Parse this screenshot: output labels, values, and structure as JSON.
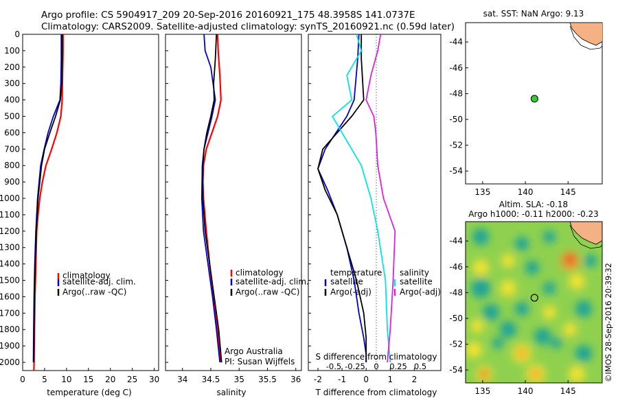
{
  "header": {
    "line1": "Argo profile: CS 5904917_209 20-Sep-2016 20160921_175 48.3958S 141.0737E",
    "line2": "Climatology: CARS2009. Satellite-adjusted climatology: synTS_20160921.nc (0.59d later)"
  },
  "footer_stamp": "©IMOS 28-Sep-2016 20:39:32",
  "colors": {
    "climatology": "#ff0000",
    "satellite": "#0000cc",
    "argo": "#000000",
    "satellite_s": "#00e5e5",
    "argo_s": "#e020e0",
    "argo_marker": "#33cc33",
    "land": "#f4b183"
  },
  "chart_data": [
    {
      "id": "temperature",
      "type": "line",
      "xlabel": "temperature (deg C)",
      "xlim": [
        0,
        31
      ],
      "ylim": [
        2050,
        0
      ],
      "xticks": [
        0,
        5,
        10,
        15,
        20,
        25,
        30
      ],
      "yticks": [
        0,
        100,
        200,
        300,
        400,
        500,
        600,
        700,
        800,
        900,
        1000,
        1100,
        1200,
        1300,
        1400,
        1500,
        1600,
        1700,
        1800,
        1900,
        2000
      ],
      "legend": [
        "climatology",
        "satellite-adj. clim.",
        "Argo(..raw -QC)"
      ],
      "series": [
        {
          "name": "climatology",
          "x": [
            9.2,
            9.2,
            9.1,
            9.0,
            8.7,
            7.8,
            6.6,
            5.3,
            4.5,
            3.9,
            3.5,
            3.2,
            3.0,
            2.8,
            2.7,
            2.6,
            2.55
          ],
          "y": [
            0,
            100,
            250,
            400,
            500,
            600,
            700,
            800,
            900,
            1000,
            1100,
            1200,
            1400,
            1600,
            1800,
            2000,
            2050
          ]
        },
        {
          "name": "satellite-adj. clim.",
          "x": [
            8.8,
            8.8,
            8.7,
            8.5,
            7.0,
            5.8,
            4.9,
            4.1,
            3.4,
            3.0,
            2.75,
            2.6,
            2.5,
            2.45
          ],
          "y": [
            0,
            150,
            300,
            400,
            500,
            600,
            700,
            800,
            1000,
            1200,
            1400,
            1600,
            1800,
            2000
          ]
        },
        {
          "name": "Argo(..raw -QC)",
          "x": [
            9.0,
            9.0,
            8.9,
            8.6,
            7.5,
            6.2,
            5.0,
            4.3,
            3.5,
            3.1,
            2.85,
            2.7,
            2.6,
            2.55
          ],
          "y": [
            0,
            150,
            300,
            400,
            500,
            600,
            700,
            800,
            1000,
            1200,
            1400,
            1600,
            1800,
            2000
          ]
        }
      ]
    },
    {
      "id": "salinity",
      "type": "line",
      "xlabel": "salinity",
      "xlim": [
        33.7,
        36.1
      ],
      "ylim": [
        2050,
        0
      ],
      "xticks": [
        34,
        34.5,
        35,
        35.5,
        36
      ],
      "legend": [
        "climatology",
        "satellite-adj. clim.",
        "Argo(..raw -QC)"
      ],
      "annotation": [
        "Argo Australia",
        "PI: Susan Wijffels"
      ],
      "series": [
        {
          "name": "climatology",
          "x": [
            34.62,
            34.63,
            34.66,
            34.68,
            34.62,
            34.52,
            34.42,
            34.37,
            34.36,
            34.37,
            34.42,
            34.48,
            34.55,
            34.62,
            34.67
          ],
          "y": [
            0,
            100,
            250,
            400,
            500,
            600,
            700,
            800,
            900,
            1000,
            1200,
            1400,
            1600,
            1800,
            2000
          ]
        },
        {
          "name": "satellite-adj. clim.",
          "x": [
            34.38,
            34.4,
            34.5,
            34.58,
            34.52,
            34.45,
            34.38,
            34.35,
            34.34,
            34.37,
            34.45,
            34.53,
            34.6,
            34.66
          ],
          "y": [
            0,
            100,
            200,
            400,
            500,
            600,
            700,
            800,
            1000,
            1200,
            1400,
            1600,
            1800,
            2000
          ]
        },
        {
          "name": "Argo(..raw -QC)",
          "x": [
            34.6,
            34.58,
            34.55,
            34.56,
            34.5,
            34.43,
            34.38,
            34.36,
            34.36,
            34.4,
            34.48,
            34.56,
            34.64,
            34.69
          ],
          "y": [
            0,
            150,
            300,
            400,
            500,
            600,
            700,
            800,
            1000,
            1200,
            1400,
            1600,
            1800,
            2000
          ]
        }
      ]
    },
    {
      "id": "difference",
      "type": "line",
      "xlabel": "T difference from climatology",
      "xlim": [
        -2.4,
        3.1
      ],
      "ylim": [
        2050,
        0
      ],
      "xticks": [
        -2,
        -1,
        0,
        1,
        2
      ],
      "top_axis_label": "S difference from climatology",
      "top_xticks": [
        "-0.5",
        "-0.25",
        "0",
        "0.25",
        "0.5"
      ],
      "legend": {
        "temperature": "temperature",
        "salinity": "salinity",
        "satellite": "satellite",
        "argo": "Argo(-adj)"
      },
      "series": [
        {
          "name": "temperature satellite",
          "x": [
            -0.3,
            -0.35,
            -0.5,
            -0.8,
            -1.7,
            -2.0,
            -1.6,
            -1.2,
            -0.8,
            -0.5,
            -0.3,
            -0.1,
            0,
            0
          ],
          "y": [
            0,
            150,
            400,
            500,
            700,
            820,
            950,
            1100,
            1300,
            1500,
            1700,
            1850,
            1950,
            2000
          ]
        },
        {
          "name": "temperature Argo(-adj)",
          "x": [
            -0.2,
            -0.2,
            -0.1,
            -0.6,
            -1.2,
            -1.8,
            -2.0,
            -1.7,
            -1.2,
            -0.8,
            -0.4,
            -0.1,
            0,
            0
          ],
          "y": [
            0,
            150,
            400,
            500,
            600,
            700,
            820,
            950,
            1100,
            1300,
            1500,
            1700,
            1850,
            2000
          ]
        },
        {
          "name": "salinity satellite",
          "x": [
            -0.1,
            -0.05,
            -0.2,
            -0.15,
            -0.35,
            -0.25,
            -0.05,
            0.05,
            0.12,
            0.2,
            0.22,
            0.25
          ],
          "y": [
            0,
            100,
            250,
            400,
            500,
            600,
            800,
            1000,
            1200,
            1500,
            1800,
            2000
          ]
        },
        {
          "name": "salinity Argo(-adj)",
          "x": [
            0.15,
            0.12,
            0.05,
            0.0,
            0.08,
            0.1,
            0.12,
            0.18,
            0.3,
            0.28,
            0.25,
            0.22
          ],
          "y": [
            0,
            100,
            250,
            400,
            500,
            600,
            800,
            1000,
            1200,
            1500,
            1800,
            2000
          ]
        }
      ]
    },
    {
      "id": "map_sst",
      "type": "scatter",
      "title": "sat. SST: NaN Argo: 9.13",
      "xlim": [
        133,
        149
      ],
      "ylim": [
        -55,
        -42.5
      ],
      "xticks": [
        135,
        140,
        145
      ],
      "yticks": [
        -44,
        -46,
        -48,
        -50,
        -52,
        -54
      ],
      "point": {
        "lon": 141.07,
        "lat": -48.4
      }
    },
    {
      "id": "map_sla",
      "type": "heatmap",
      "title_line1": "Altim. SLA: -0.18",
      "title_line2": "Argo h1000: -0.11 h2000: -0.23",
      "xlim": [
        133,
        149
      ],
      "ylim": [
        -55,
        -42.5
      ],
      "xticks": [
        135,
        140,
        145
      ],
      "yticks": [
        -44,
        -46,
        -48,
        -50,
        -52,
        -54
      ],
      "point": {
        "lon": 141.07,
        "lat": -48.4
      }
    }
  ]
}
